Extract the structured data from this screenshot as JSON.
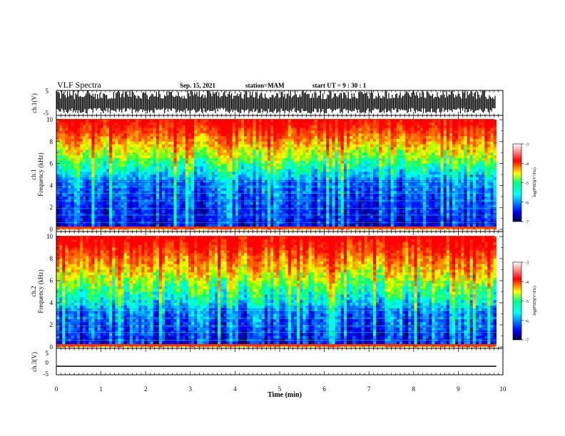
{
  "header": {
    "title": "VLF Spectra",
    "date": "Sep. 15, 2021",
    "station": "station=MAM",
    "start": "start  UT =   9 : 30 : 1"
  },
  "colors": {
    "spectrogram_scale": [
      "#00007f",
      "#0000ff",
      "#00bfff",
      "#00ffff",
      "#00ff80",
      "#80ff00",
      "#ffff00",
      "#ff8000",
      "#ff0000"
    ]
  },
  "chart_data": [
    {
      "type": "line",
      "panel": "ch.1 waveform",
      "ylabel": "ch.1(V)",
      "ylim": [
        -5,
        5
      ],
      "yticks": [
        "5",
        "-5"
      ],
      "xlim": [
        0,
        10
      ],
      "x_unit": "min",
      "description_values": {
        "typical_min_V": -3.5,
        "typical_max_V": 4.5
      }
    },
    {
      "type": "heatmap",
      "panel": "ch.1 spectrogram",
      "ylabel_line1": "ch.1",
      "ylabel_line2": "Frequency (kHz)",
      "ylim": [
        0,
        10
      ],
      "yticks": [
        "0",
        "2",
        "4",
        "6",
        "8",
        "10"
      ],
      "xlim": [
        0,
        9.85
      ],
      "colorbar": {
        "label": "log(PSD)(V²/Hz)",
        "ticks": [
          "-3",
          "-4",
          "-5",
          "-6",
          "-7"
        ],
        "range": [
          -7,
          -3
        ]
      }
    },
    {
      "type": "heatmap",
      "panel": "ch.2 spectrogram",
      "ylabel_line1": "ch.2",
      "ylabel_line2": "Frequency (kHz)",
      "ylim": [
        0,
        10
      ],
      "yticks": [
        "0",
        "2",
        "4",
        "6",
        "8",
        "10"
      ],
      "xlim": [
        0,
        9.85
      ],
      "colorbar": {
        "label": "log(PSD)(V²/Hz)",
        "ticks": [
          "-3",
          "-4",
          "-5",
          "-6",
          "-7"
        ],
        "range": [
          -7,
          -3
        ]
      }
    },
    {
      "type": "line",
      "panel": "ch.3 waveform",
      "ylabel": "ch.3(V)",
      "ylim": [
        -5,
        5
      ],
      "yticks": [
        "5",
        "0",
        "-5"
      ],
      "xlim": [
        0,
        10
      ],
      "x": [
        0,
        9.85
      ],
      "y": [
        -1.8,
        -1.8
      ]
    }
  ],
  "xaxis": {
    "label": "Time  (min)",
    "ticks": [
      "0",
      "1",
      "2",
      "3",
      "4",
      "5",
      "6",
      "7",
      "8",
      "9",
      "10"
    ]
  }
}
